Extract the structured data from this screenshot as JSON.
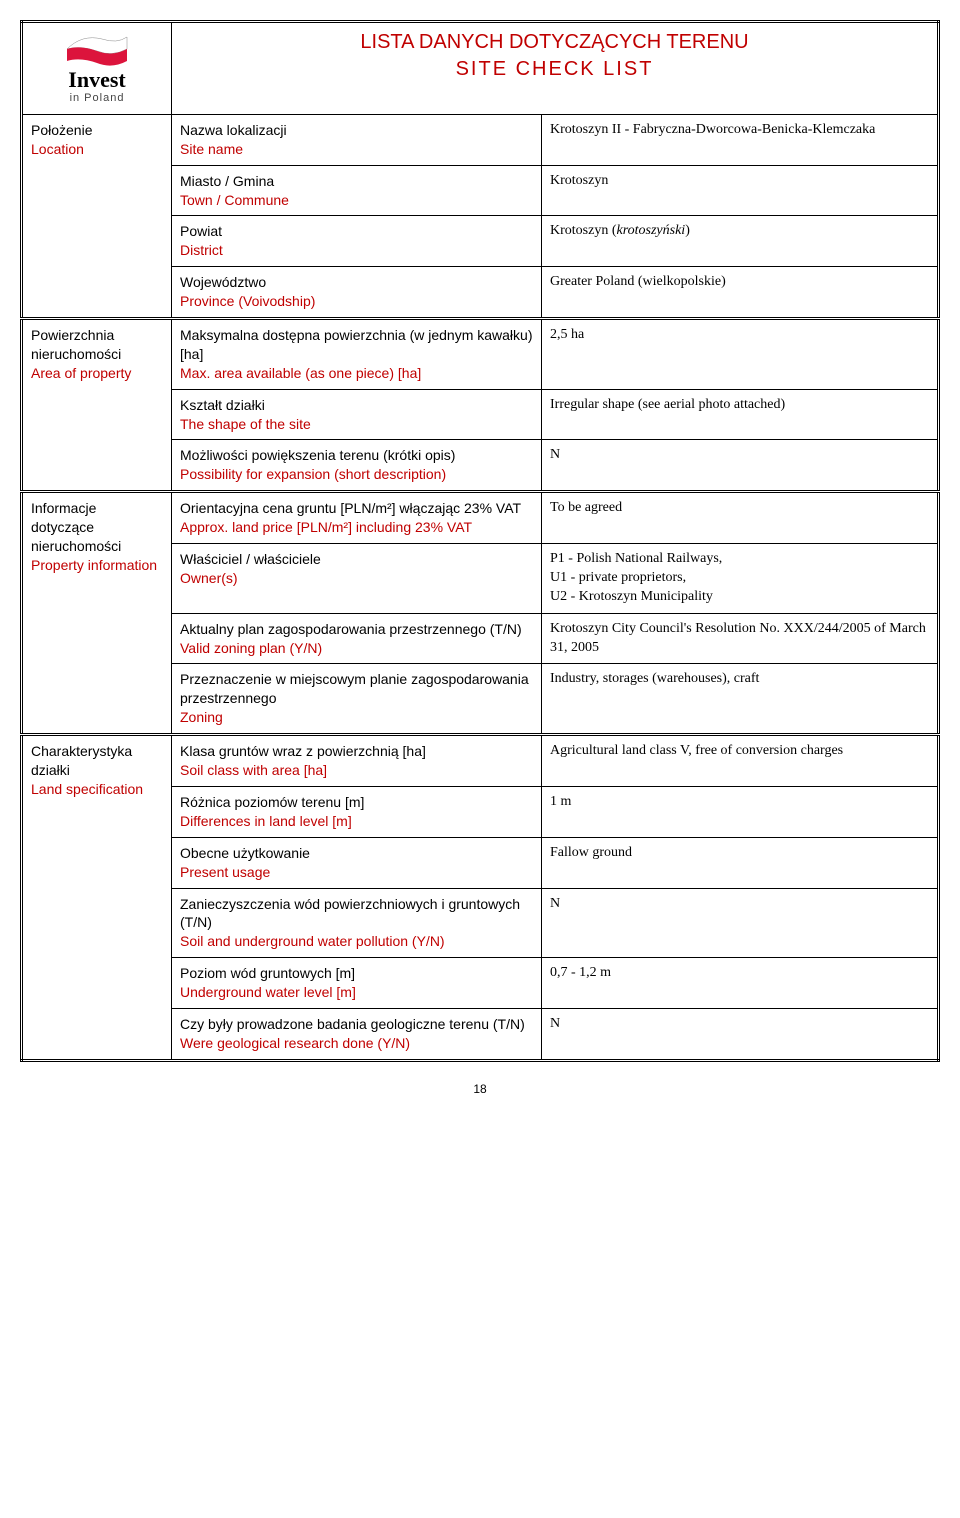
{
  "page_number": "18",
  "header": {
    "title_pl": "LISTA DANYCH DOTYCZĄCYCH TERENU",
    "title_en": "SITE  CHECK  LIST",
    "logo_text": "Invest",
    "logo_sub": "in Poland"
  },
  "sections": [
    {
      "section_pl": "Położenie",
      "section_en": "Location",
      "rows": [
        {
          "label_pl": "Nazwa lokalizacji",
          "label_en": "Site name",
          "value": "Krotoszyn II - Fabryczna-Dworcowa-Benicka-Klemczaka"
        },
        {
          "label_pl": "Miasto / Gmina",
          "label_en": "Town / Commune",
          "value": "Krotoszyn"
        },
        {
          "label_pl": "Powiat",
          "label_en": "District",
          "value_html": "Krotoszyn (<i>krotoszyński</i>)"
        },
        {
          "label_pl": "Województwo",
          "label_en": "Province (Voivodship)",
          "value": "Greater Poland (wielkopolskie)"
        }
      ]
    },
    {
      "section_pl": "Powierzchnia nieruchomości",
      "section_en": "Area of property",
      "rows": [
        {
          "label_pl": "Maksymalna dostępna powierzchnia (w jednym kawałku) [ha]",
          "label_en": "Max. area available (as one piece) [ha]",
          "value": "2,5 ha"
        },
        {
          "label_pl": "Kształt działki",
          "label_en": "The shape of the site",
          "value": "Irregular shape (see aerial photo attached)"
        },
        {
          "label_pl": "Możliwości powiększenia terenu (krótki opis)",
          "label_en": "Possibility for expansion (short description)",
          "value": "N"
        }
      ]
    },
    {
      "section_pl": "Informacje dotyczące nieruchomości",
      "section_en": "Property information",
      "rows": [
        {
          "label_pl": "Orientacyjna cena gruntu [PLN/m²] włączając 23% VAT",
          "label_en": "Approx. land price [PLN/m²] including 23% VAT",
          "value": "To be agreed"
        },
        {
          "label_pl": "Właściciel / właściciele",
          "label_en": "Owner(s)",
          "value": "P1 - Polish National Railways,\nU1 - private proprietors,\nU2 - Krotoszyn Municipality"
        },
        {
          "label_pl": "Aktualny plan zagospodarowania przestrzennego (T/N)",
          "label_en": "Valid zoning plan (Y/N)",
          "value": "Krotoszyn City Council's Resolution No. XXX/244/2005 of March 31, 2005"
        },
        {
          "label_pl": "Przeznaczenie w miejscowym planie zagospodarowania przestrzennego",
          "label_en": "Zoning",
          "value": "Industry, storages (warehouses), craft"
        }
      ]
    },
    {
      "section_pl": "Charakterystyka działki",
      "section_en": "Land specification",
      "rows": [
        {
          "label_pl": "Klasa gruntów wraz  z powierzchnią [ha]",
          "label_en": "Soil class with area [ha]",
          "value": "Agricultural land class V, free of conversion charges"
        },
        {
          "label_pl": "Różnica poziomów terenu [m]",
          "label_en": "Differences in land level [m]",
          "value": "1 m"
        },
        {
          "label_pl": "Obecne użytkowanie",
          "label_en": "Present usage",
          "value": "Fallow ground"
        },
        {
          "label_pl": "Zanieczyszczenia wód powierzchniowych i gruntowych (T/N)",
          "label_en": "Soil and underground water pollution (Y/N)",
          "value": "N"
        },
        {
          "label_pl": "Poziom wód gruntowych [m]",
          "label_en": "Underground water level [m]",
          "value": "0,7 - 1,2 m"
        },
        {
          "label_pl": "Czy były prowadzone badania geologiczne terenu (T/N)",
          "label_en": "Were geological research done (Y/N)",
          "value": "N"
        }
      ]
    }
  ],
  "colors": {
    "accent": "#c00000",
    "text": "#000000",
    "border": "#000000",
    "background": "#ffffff"
  }
}
